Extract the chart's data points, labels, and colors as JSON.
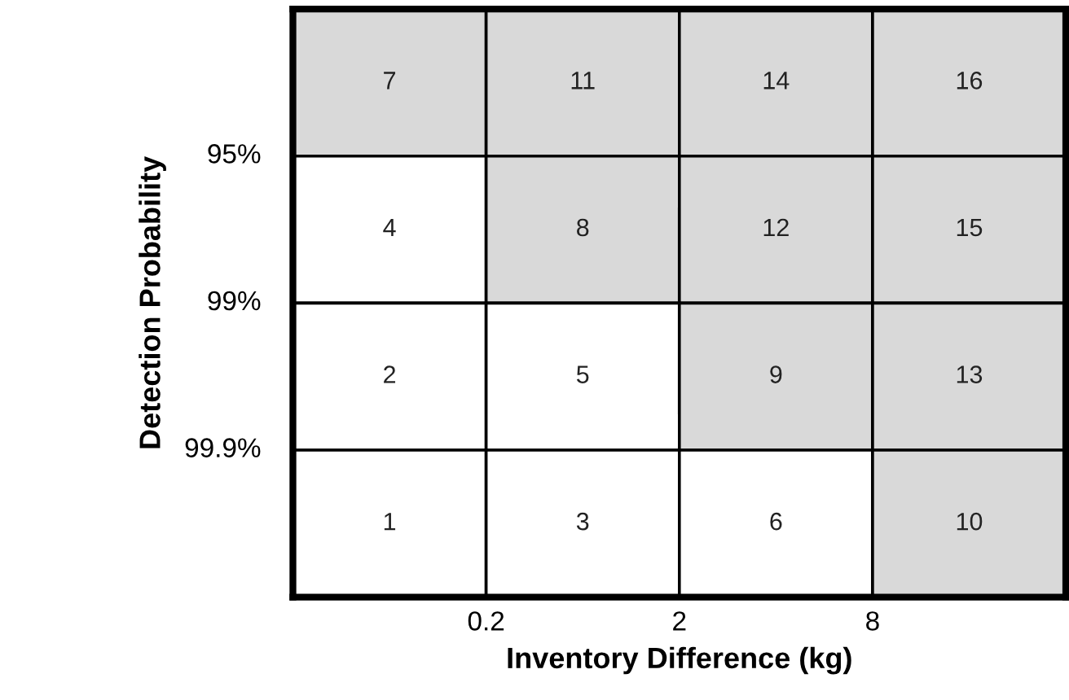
{
  "chart_data": {
    "type": "heatmap",
    "xlabel": "Inventory Difference (kg)",
    "ylabel": "Detection Probability",
    "categories": [
      null,
      null,
      null,
      null
    ],
    "y_categories": [
      null,
      null,
      null,
      null
    ],
    "cells": [
      [
        7,
        11,
        14,
        16
      ],
      [
        4,
        8,
        12,
        15
      ],
      [
        2,
        5,
        9,
        13
      ],
      [
        1,
        3,
        6,
        10
      ]
    ],
    "colors": [
      "#d9d9d9",
      "#d9d9d9",
      "#d9d9d9",
      "#d9d9d9",
      "#ffffff",
      "#d9d9d9",
      "#d9d9d9",
      "#d9d9d9",
      "#ffffff",
      "#ffffff",
      "#d9d9d9",
      "#d9d9d9",
      "#ffffff",
      "#ffffff",
      "#ffffff",
      "#d9d9d9"
    ],
    "data_labels": true,
    "annotations": [
      "0.2",
      "2",
      "8",
      "95%",
      "99%",
      "99.9%"
    ]
  }
}
